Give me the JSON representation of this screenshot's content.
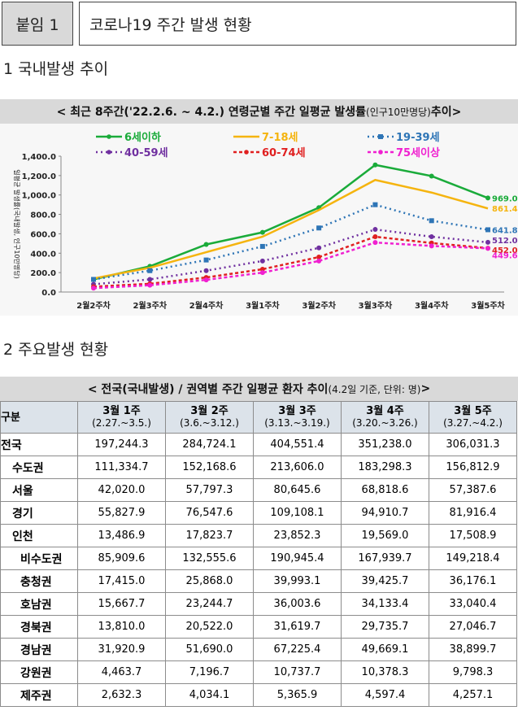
{
  "header": {
    "tag": "붙임 1",
    "title": "코로나19 주간 발생 현황"
  },
  "section1": {
    "title": "1  국내발생 추이"
  },
  "chart_band": {
    "main": "< 최근 8주간('22.2.6. ~ 4.2.) 연령군별 주간 일평균 발생률",
    "sub": "(인구10만명당)",
    "end": " 추이>"
  },
  "chart_data": {
    "type": "line",
    "ylabel": "일평균 발생률(국내발생, 인구10만명당)",
    "ylim": [
      0,
      1400
    ],
    "yticks": [
      "0.0",
      "200.0",
      "400.0",
      "600.0",
      "800.0",
      "1,000.0",
      "1,200.0",
      "1,400.0"
    ],
    "categories": [
      "2월2주차",
      "2월3주차",
      "2월4주차",
      "3월1주차",
      "3월2주차",
      "3월3주차",
      "3월4주차",
      "3월5주차"
    ],
    "series": [
      {
        "name": "6세이하",
        "color": "#1aab3a",
        "dash": "",
        "marker": "circle",
        "values": [
          130,
          265,
          490,
          615,
          870,
          1310,
          1195,
          969.0
        ],
        "end_label": "969.0"
      },
      {
        "name": "7-18세",
        "color": "#f5b40f",
        "dash": "",
        "marker": "none",
        "values": [
          140,
          250,
          410,
          570,
          845,
          1155,
          1025,
          861.4
        ],
        "end_label": "861.4"
      },
      {
        "name": "19-39세",
        "color": "#2e75b6",
        "dash": "2,4",
        "marker": "square",
        "values": [
          130,
          220,
          330,
          470,
          660,
          900,
          735,
          641.8
        ],
        "end_label": "641.8"
      },
      {
        "name": "40-59세",
        "color": "#7030a0",
        "dash": "2,4",
        "marker": "circle",
        "values": [
          80,
          130,
          220,
          320,
          455,
          645,
          570,
          512.0
        ],
        "end_label": "512.0"
      },
      {
        "name": "60-74세",
        "color": "#e02020",
        "dash": "4,3",
        "marker": "circle",
        "values": [
          55,
          85,
          150,
          235,
          360,
          570,
          505,
          452.0
        ],
        "end_label": "452.0"
      },
      {
        "name": "75세이상",
        "color": "#f020d0",
        "dash": "4,3",
        "marker": "circle",
        "values": [
          40,
          70,
          125,
          200,
          320,
          510,
          475,
          449.6
        ],
        "end_label": "449.6"
      }
    ]
  },
  "section2": {
    "title": "2  주요발생 현황"
  },
  "table_band": {
    "main": "< 전국(국내발생) / 권역별 주간 일평균 환자 추이",
    "sub": " (4.2일 기준, 단위: 명)",
    "end": " >"
  },
  "table": {
    "corner": "구분",
    "columns": [
      {
        "week": "3월 1주",
        "range": "(2.27.~3.5.)"
      },
      {
        "week": "3월 2주",
        "range": "(3.6.~3.12.)"
      },
      {
        "week": "3월 3주",
        "range": "(3.13.~3.19.)"
      },
      {
        "week": "3월 4주",
        "range": "(3.20.~3.26.)"
      },
      {
        "week": "3월 5주",
        "range": "(3.27.~4.2.)"
      }
    ],
    "rows": [
      {
        "name": "전국",
        "values": [
          "197,244.3",
          "284,724.1",
          "404,551.4",
          "351,238.0",
          "306,031.3"
        ]
      },
      {
        "name": "수도권",
        "values": [
          "111,334.7",
          "152,168.6",
          "213,606.0",
          "183,298.3",
          "156,812.9"
        ]
      },
      {
        "name": "서울",
        "values": [
          "42,020.0",
          "57,797.3",
          "80,645.6",
          "68,818.6",
          "57,387.6"
        ]
      },
      {
        "name": "경기",
        "values": [
          "55,827.9",
          "76,547.6",
          "109,108.1",
          "94,910.7",
          "81,916.4"
        ]
      },
      {
        "name": "인천",
        "values": [
          "13,486.9",
          "17,823.7",
          "23,852.3",
          "19,569.0",
          "17,508.9"
        ]
      },
      {
        "name": "비수도권",
        "values": [
          "85,909.6",
          "132,555.6",
          "190,945.4",
          "167,939.7",
          "149,218.4"
        ]
      },
      {
        "name": "충청권",
        "values": [
          "17,415.0",
          "25,868.0",
          "39,993.1",
          "39,425.7",
          "36,176.1"
        ]
      },
      {
        "name": "호남권",
        "values": [
          "15,667.7",
          "23,244.7",
          "36,003.6",
          "34,133.4",
          "33,040.4"
        ]
      },
      {
        "name": "경북권",
        "values": [
          "13,810.0",
          "20,522.0",
          "31,619.7",
          "29,735.7",
          "27,046.7"
        ]
      },
      {
        "name": "경남권",
        "values": [
          "31,920.9",
          "51,690.0",
          "67,225.4",
          "49,669.1",
          "38,899.7"
        ]
      },
      {
        "name": "강원권",
        "values": [
          "4,463.7",
          "7,196.7",
          "10,737.7",
          "10,378.3",
          "9,798.3"
        ]
      },
      {
        "name": "제주권",
        "values": [
          "2,632.3",
          "4,034.1",
          "5,365.9",
          "4,597.4",
          "4,257.1"
        ]
      }
    ]
  }
}
